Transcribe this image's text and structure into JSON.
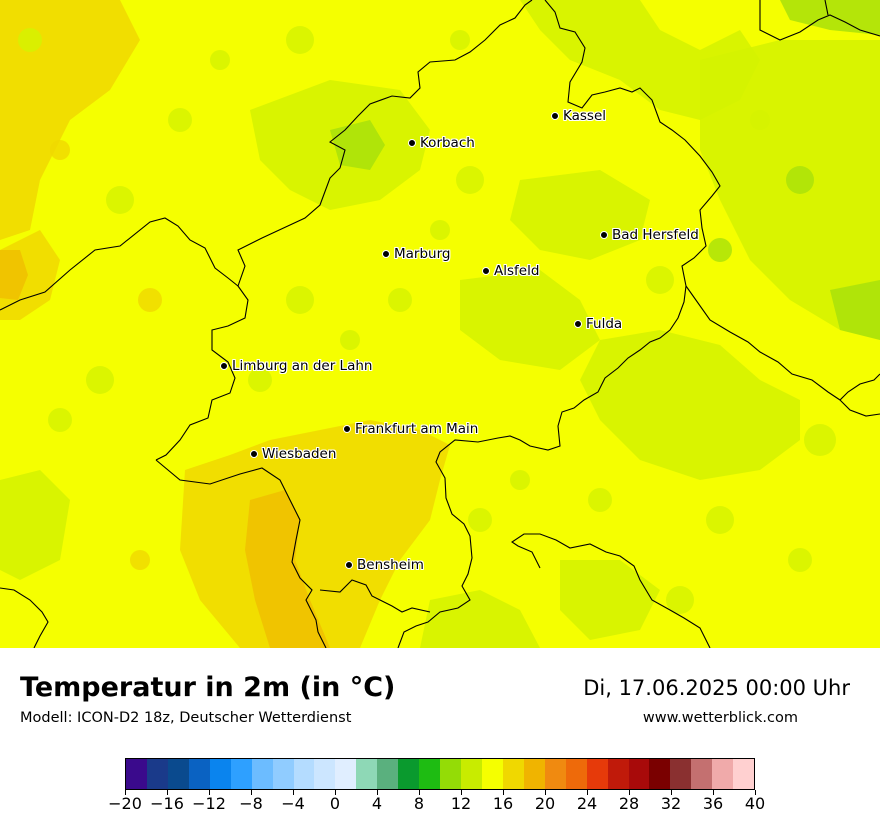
{
  "map": {
    "base_color": "#f5ff00",
    "colors": {
      "yellow": "#f5ff00",
      "yellow_green": "#d4f200",
      "green": "#a8e10a",
      "orange_yellow": "#f0d800",
      "orange": "#f0c000",
      "border": "#000000"
    },
    "cities": [
      {
        "id": "kassel",
        "name": "Kassel"
      },
      {
        "id": "korbach",
        "name": "Korbach"
      },
      {
        "id": "bad-hersfeld",
        "name": "Bad Hersfeld"
      },
      {
        "id": "marburg",
        "name": "Marburg"
      },
      {
        "id": "alsfeld",
        "name": "Alsfeld"
      },
      {
        "id": "fulda",
        "name": "Fulda"
      },
      {
        "id": "limburg",
        "name": "Limburg an der Lahn"
      },
      {
        "id": "frankfurt",
        "name": "Frankfurt am Main"
      },
      {
        "id": "wiesbaden",
        "name": "Wiesbaden"
      },
      {
        "id": "bensheim",
        "name": "Bensheim"
      }
    ]
  },
  "footer": {
    "title": "Temperatur in 2m (in °C)",
    "subtitle": "Modell: ICON-D2 18z, Deutscher Wetterdienst",
    "datetime": "Di, 17.06.2025 00:00 Uhr",
    "website": "www.wetterblick.com"
  },
  "legend": {
    "tick_labels": [
      "−20",
      "−16",
      "−12",
      "−8",
      "−4",
      "0",
      "4",
      "8",
      "12",
      "16",
      "20",
      "24",
      "28",
      "32",
      "36",
      "40"
    ],
    "tick_values": [
      -20,
      -16,
      -12,
      -8,
      -4,
      0,
      4,
      8,
      12,
      16,
      20,
      24,
      28,
      32,
      36,
      40
    ],
    "min": -20,
    "max": 40,
    "colors": [
      "#3a0a8c",
      "#1a3a8a",
      "#0a4a8e",
      "#0a62c2",
      "#0a84ee",
      "#2ea0ff",
      "#6cbcff",
      "#90ccff",
      "#b4dcff",
      "#cce6ff",
      "#e0eeff",
      "#8ed8b6",
      "#5ab07e",
      "#0a9a2e",
      "#1ebc12",
      "#94dc06",
      "#c8ec00",
      "#f5ff00",
      "#f0d800",
      "#f0b400",
      "#f08a10",
      "#ee6a0a",
      "#e63a0a",
      "#c01a0a",
      "#a80a0a",
      "#7a0000",
      "#8a3030",
      "#c47070",
      "#f0aaaa",
      "#ffd0d0"
    ]
  }
}
